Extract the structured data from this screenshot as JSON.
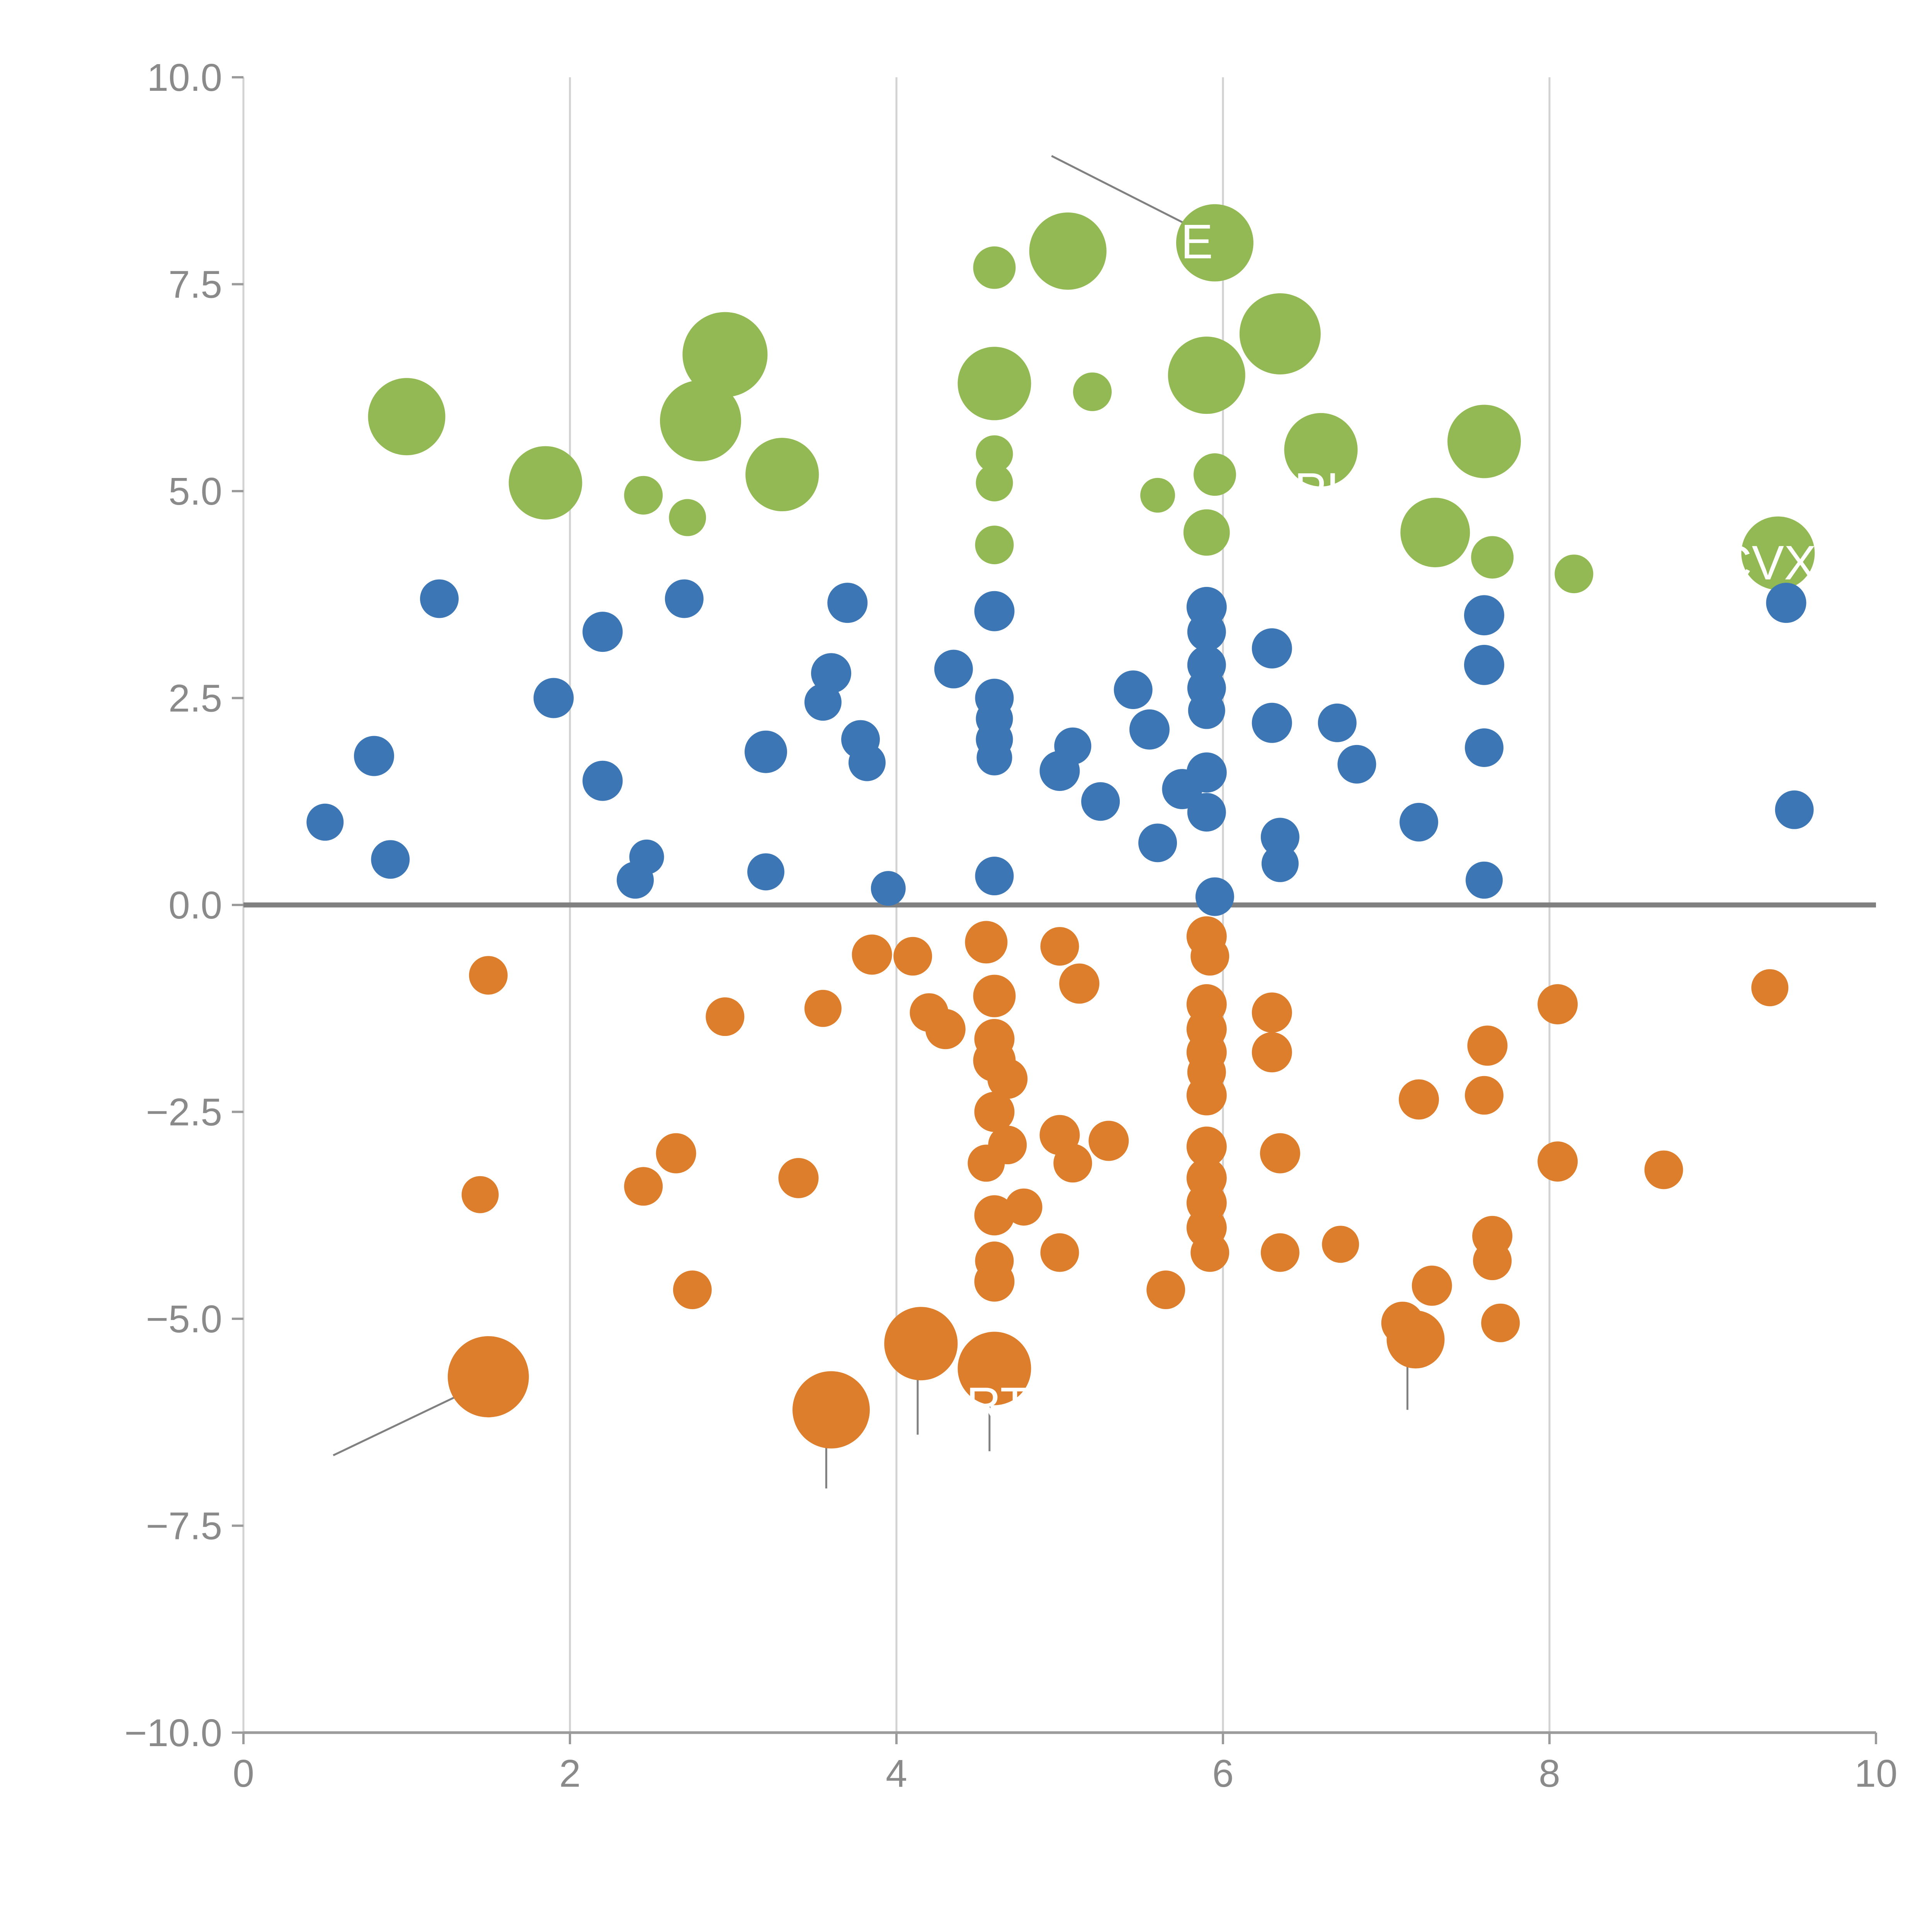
{
  "chart_data": {
    "type": "scatter",
    "title": "",
    "xlabel": "",
    "ylabel": "",
    "xlim": [
      0,
      10
    ],
    "ylim": [
      -10,
      10
    ],
    "x_ticks": [
      0,
      2,
      4,
      6,
      8,
      10
    ],
    "x_tick_labels": [
      "0",
      "2",
      "4",
      "6",
      "8",
      "10"
    ],
    "y_ticks": [
      -10,
      -7.5,
      -5,
      -2.5,
      0,
      2.5,
      5,
      7.5,
      10
    ],
    "y_tick_labels": [
      "−10.0",
      "−7.5",
      "−5.0",
      "−2.5",
      "0.0",
      "2.5",
      "5.0",
      "7.5",
      "10.0"
    ],
    "x_gridlines": [
      2,
      4,
      6,
      8
    ],
    "grid_on": true,
    "legend": "none",
    "colors": {
      "green": "#93b954",
      "blue": "#3d76b4",
      "orange": "#dd7e2d",
      "grid": "#d2d2d2",
      "axis": "#9b9b9b",
      "zero_line": "#808080",
      "tick_text": "#8a8a8a",
      "annotation_line": "#808080",
      "label_text": "#ffffff"
    },
    "series": [
      {
        "name": "green-positive-large",
        "color": "#93b954",
        "points": [
          [
            1.0,
            5.9,
            100
          ],
          [
            1.85,
            5.1,
            95
          ],
          [
            2.45,
            4.95,
            50
          ],
          [
            2.72,
            4.68,
            48
          ],
          [
            2.8,
            5.85,
            105
          ],
          [
            2.95,
            6.65,
            110
          ],
          [
            3.3,
            5.2,
            95
          ],
          [
            4.6,
            7.7,
            55
          ],
          [
            5.05,
            7.9,
            100
          ],
          [
            4.6,
            6.3,
            95
          ],
          [
            5.2,
            6.2,
            50
          ],
          [
            4.6,
            5.45,
            48
          ],
          [
            4.6,
            5.1,
            48
          ],
          [
            4.6,
            4.35,
            50
          ],
          [
            5.6,
            4.95,
            45
          ],
          [
            5.95,
            8.0,
            100
          ],
          [
            5.9,
            6.4,
            100
          ],
          [
            5.95,
            5.2,
            55
          ],
          [
            5.9,
            4.5,
            60
          ],
          [
            6.35,
            6.9,
            105
          ],
          [
            6.6,
            5.5,
            95
          ],
          [
            7.3,
            4.5,
            90
          ],
          [
            7.6,
            5.6,
            95
          ],
          [
            7.65,
            4.2,
            55
          ],
          [
            8.15,
            4.0,
            50
          ],
          [
            9.4,
            4.25,
            95
          ]
        ]
      },
      {
        "name": "blue-positive-small",
        "color": "#3d76b4",
        "points": [
          [
            0.5,
            1.0,
            48
          ],
          [
            0.8,
            1.8,
            52
          ],
          [
            0.9,
            0.55,
            50
          ],
          [
            1.2,
            3.7,
            50
          ],
          [
            1.9,
            2.5,
            52
          ],
          [
            2.2,
            3.3,
            52
          ],
          [
            2.2,
            1.5,
            52
          ],
          [
            2.4,
            0.3,
            48
          ],
          [
            2.47,
            0.58,
            45
          ],
          [
            2.7,
            3.7,
            50
          ],
          [
            3.2,
            1.85,
            55
          ],
          [
            3.2,
            0.4,
            48
          ],
          [
            3.6,
            2.8,
            52
          ],
          [
            3.55,
            2.45,
            48
          ],
          [
            3.7,
            3.65,
            52
          ],
          [
            3.78,
            2.0,
            50
          ],
          [
            3.82,
            1.72,
            48
          ],
          [
            3.95,
            0.2,
            45
          ],
          [
            4.35,
            2.85,
            50
          ],
          [
            4.6,
            3.55,
            52
          ],
          [
            4.6,
            2.5,
            50
          ],
          [
            4.6,
            2.25,
            48
          ],
          [
            4.6,
            2.0,
            48
          ],
          [
            4.6,
            1.78,
            46
          ],
          [
            4.6,
            0.35,
            50
          ],
          [
            5.0,
            1.62,
            52
          ],
          [
            5.08,
            1.92,
            48
          ],
          [
            5.25,
            1.25,
            50
          ],
          [
            5.45,
            2.6,
            50
          ],
          [
            5.55,
            2.12,
            52
          ],
          [
            5.6,
            0.75,
            50
          ],
          [
            5.75,
            1.4,
            52
          ],
          [
            5.9,
            3.6,
            52
          ],
          [
            5.9,
            3.3,
            50
          ],
          [
            5.9,
            2.9,
            50
          ],
          [
            5.9,
            2.62,
            50
          ],
          [
            5.9,
            2.35,
            48
          ],
          [
            5.9,
            1.6,
            52
          ],
          [
            5.9,
            1.12,
            50
          ],
          [
            5.95,
            0.1,
            50
          ],
          [
            6.3,
            3.1,
            52
          ],
          [
            6.3,
            2.2,
            52
          ],
          [
            6.35,
            0.82,
            50
          ],
          [
            6.35,
            0.5,
            48
          ],
          [
            6.7,
            2.2,
            50
          ],
          [
            6.82,
            1.7,
            50
          ],
          [
            7.2,
            1.0,
            50
          ],
          [
            7.6,
            3.5,
            52
          ],
          [
            7.6,
            2.9,
            52
          ],
          [
            7.6,
            1.9,
            50
          ],
          [
            7.6,
            0.3,
            48
          ],
          [
            9.45,
            3.65,
            52
          ],
          [
            9.5,
            1.15,
            50
          ]
        ]
      },
      {
        "name": "orange-negative",
        "color": "#dd7e2d",
        "points": [
          [
            1.5,
            -0.85,
            50
          ],
          [
            1.45,
            -3.5,
            48
          ],
          [
            1.5,
            -5.7,
            105
          ],
          [
            2.45,
            -3.4,
            50
          ],
          [
            2.65,
            -3.0,
            52
          ],
          [
            2.75,
            -4.65,
            50
          ],
          [
            2.95,
            -1.35,
            50
          ],
          [
            3.4,
            -3.3,
            52
          ],
          [
            3.55,
            -1.25,
            48
          ],
          [
            3.6,
            -6.1,
            100
          ],
          [
            3.85,
            -0.6,
            52
          ],
          [
            4.1,
            -0.62,
            50
          ],
          [
            4.15,
            -5.3,
            95
          ],
          [
            4.2,
            -1.3,
            50
          ],
          [
            4.3,
            -1.5,
            52
          ],
          [
            4.55,
            -0.45,
            55
          ],
          [
            4.6,
            -1.1,
            55
          ],
          [
            4.6,
            -1.62,
            52
          ],
          [
            4.6,
            -1.88,
            55
          ],
          [
            4.68,
            -2.1,
            52
          ],
          [
            4.6,
            -2.5,
            52
          ],
          [
            4.68,
            -2.9,
            50
          ],
          [
            4.55,
            -3.12,
            48
          ],
          [
            4.6,
            -3.75,
            52
          ],
          [
            4.78,
            -3.65,
            48
          ],
          [
            4.6,
            -4.3,
            50
          ],
          [
            4.6,
            -4.55,
            52
          ],
          [
            4.6,
            -5.6,
            95
          ],
          [
            5.0,
            -0.5,
            50
          ],
          [
            5.12,
            -0.95,
            52
          ],
          [
            5.0,
            -2.78,
            52
          ],
          [
            5.08,
            -3.12,
            50
          ],
          [
            5.0,
            -4.2,
            50
          ],
          [
            5.3,
            -2.85,
            52
          ],
          [
            5.65,
            -4.65,
            50
          ],
          [
            5.9,
            -0.38,
            52
          ],
          [
            5.92,
            -0.62,
            50
          ],
          [
            5.9,
            -1.2,
            52
          ],
          [
            5.9,
            -1.5,
            52
          ],
          [
            5.9,
            -1.78,
            52
          ],
          [
            5.9,
            -2.02,
            50
          ],
          [
            5.9,
            -2.3,
            52
          ],
          [
            5.9,
            -2.92,
            52
          ],
          [
            5.9,
            -3.3,
            52
          ],
          [
            5.9,
            -3.6,
            52
          ],
          [
            5.9,
            -3.9,
            52
          ],
          [
            5.92,
            -4.2,
            50
          ],
          [
            6.3,
            -1.3,
            52
          ],
          [
            6.3,
            -1.78,
            52
          ],
          [
            6.35,
            -3.0,
            52
          ],
          [
            6.35,
            -4.2,
            50
          ],
          [
            6.72,
            -4.1,
            48
          ],
          [
            7.1,
            -5.05,
            55
          ],
          [
            7.18,
            -5.25,
            75
          ],
          [
            7.2,
            -2.35,
            52
          ],
          [
            7.28,
            -4.6,
            52
          ],
          [
            7.62,
            -1.7,
            52
          ],
          [
            7.6,
            -2.3,
            50
          ],
          [
            7.65,
            -4.0,
            52
          ],
          [
            7.65,
            -4.3,
            50
          ],
          [
            7.7,
            -5.05,
            50
          ],
          [
            8.05,
            -1.2,
            52
          ],
          [
            8.05,
            -3.1,
            52
          ],
          [
            8.7,
            -3.2,
            50
          ],
          [
            9.35,
            -1.0,
            48
          ]
        ]
      }
    ],
    "point_labels": [
      {
        "text": "AAPL",
        "x": 6.42,
        "y": 5.0
      },
      {
        "text": "CVX",
        "x": 9.33,
        "y": 4.12
      },
      {
        "text": "RTX",
        "x": 4.72,
        "y": -6.05
      },
      {
        "text": "E",
        "x": 5.84,
        "y": 8.0
      }
    ],
    "leader_lines": [
      [
        4.95,
        9.05,
        5.88,
        8.12
      ],
      [
        0.55,
        -6.65,
        1.43,
        -5.82
      ],
      [
        3.57,
        -6.35,
        3.57,
        -7.05
      ],
      [
        4.13,
        -5.6,
        4.13,
        -6.4
      ],
      [
        4.57,
        -5.75,
        4.57,
        -6.6
      ],
      [
        7.13,
        -5.45,
        7.13,
        -6.1
      ]
    ]
  }
}
